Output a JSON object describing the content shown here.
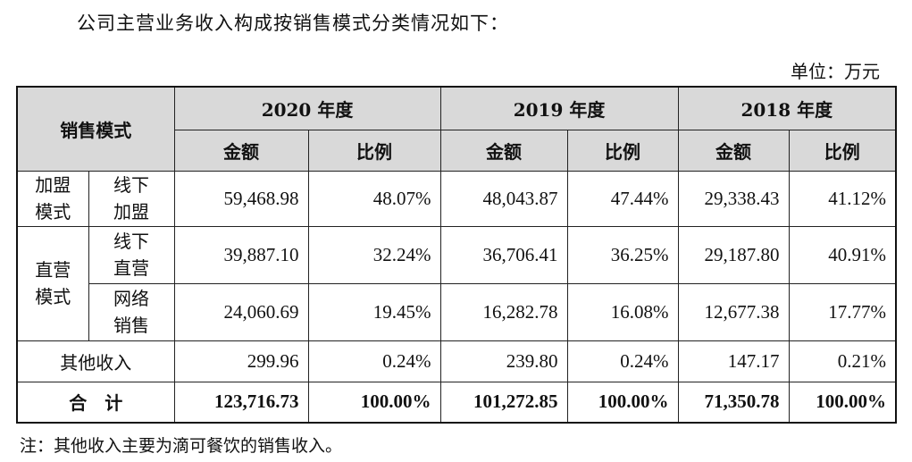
{
  "intro": "公司主营业务收入构成按销售模式分类情况如下：",
  "unit": "单位：万元",
  "table": {
    "header_mode": "销售模式",
    "years": [
      "2020 年度",
      "2019 年度",
      "2018 年度"
    ],
    "sub_amount": "金额",
    "sub_ratio": "比例",
    "rows": [
      {
        "group": "加盟模式",
        "sub": "线下加盟",
        "values": [
          "59,468.98",
          "48.07%",
          "48,043.87",
          "47.44%",
          "29,338.43",
          "41.12%"
        ]
      },
      {
        "group": "直营模式",
        "sub": "线下直营",
        "values": [
          "39,887.10",
          "32.24%",
          "36,706.41",
          "36.25%",
          "29,187.80",
          "40.91%"
        ]
      },
      {
        "group": "直营模式",
        "sub": "网络销售",
        "values": [
          "24,060.69",
          "19.45%",
          "16,282.78",
          "16.08%",
          "12,677.38",
          "17.77%"
        ]
      },
      {
        "group": "其他收入",
        "sub": "",
        "values": [
          "299.96",
          "0.24%",
          "239.80",
          "0.24%",
          "147.17",
          "0.21%"
        ]
      }
    ],
    "total": {
      "label": "合　计",
      "values": [
        "123,716.73",
        "100.00%",
        "101,272.85",
        "100.00%",
        "71,350.78",
        "100.00%"
      ]
    },
    "group_labels": {
      "franchise_line1": "加盟",
      "franchise_line2": "模式",
      "direct_line1": "直营",
      "direct_line2": "模式",
      "offline_franchise_1": "线下",
      "offline_franchise_2": "加盟",
      "offline_direct_1": "线下",
      "offline_direct_2": "直营",
      "online_1": "网络",
      "online_2": "销售"
    }
  },
  "note": "注：其他收入主要为滴可餐饮的销售收入。"
}
